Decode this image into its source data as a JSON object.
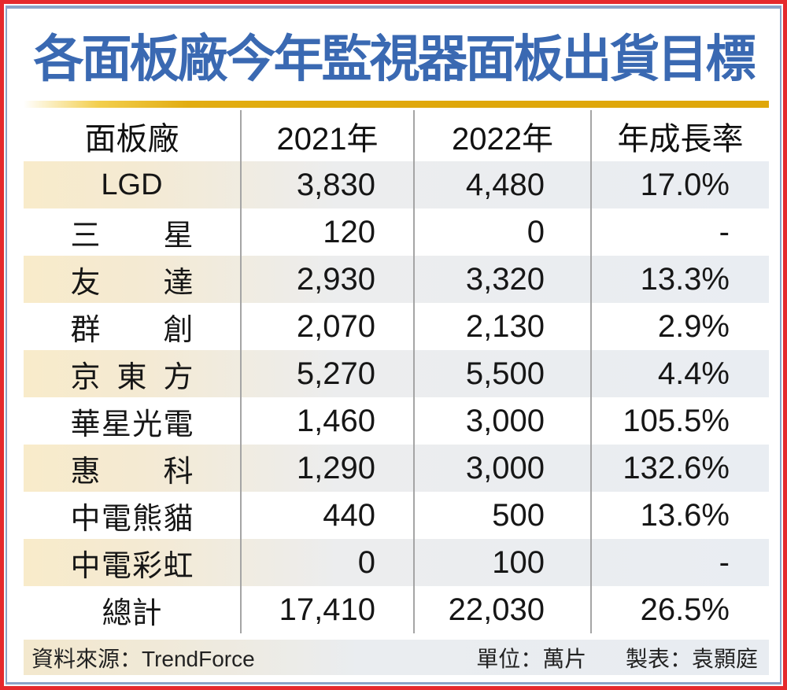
{
  "title": "各面板廠今年監視器面板出貨目標",
  "table": {
    "columns": [
      "面板廠",
      "2021年",
      "2022年",
      "年成長率"
    ],
    "rows": [
      {
        "name": "LGD",
        "y2021": "3,830",
        "y2022": "4,480",
        "growth": "17.0%"
      },
      {
        "name": "三星",
        "y2021": "120",
        "y2022": "0",
        "growth": "-"
      },
      {
        "name": "友達",
        "y2021": "2,930",
        "y2022": "3,320",
        "growth": "13.3%"
      },
      {
        "name": "群創",
        "y2021": "2,070",
        "y2022": "2,130",
        "growth": "2.9%"
      },
      {
        "name": "京東方",
        "y2021": "5,270",
        "y2022": "5,500",
        "growth": "4.4%"
      },
      {
        "name": "華星光電",
        "y2021": "1,460",
        "y2022": "3,000",
        "growth": "105.5%"
      },
      {
        "name": "惠科",
        "y2021": "1,290",
        "y2022": "3,000",
        "growth": "132.6%"
      },
      {
        "name": "中電熊貓",
        "y2021": "440",
        "y2022": "500",
        "growth": "13.6%"
      },
      {
        "name": "中電彩虹",
        "y2021": "0",
        "y2022": "100",
        "growth": "-"
      }
    ],
    "total_row": {
      "name": "總計",
      "y2021": "17,410",
      "y2022": "22,030",
      "growth": "26.5%"
    }
  },
  "footer": {
    "source": "資料來源：TrendForce",
    "unit": "單位：萬片",
    "credit": "製表：袁顥庭"
  },
  "colors": {
    "frame_red": "#e52a2d",
    "frame_blue": "#8aa4c8",
    "title_blue": "#3a69b2",
    "gold_bar": "#dfa70a",
    "stripe_beige": "#f8ebca",
    "stripe_bluegray": "#e9edf2",
    "separator_gray": "#a5a5a5"
  },
  "chart_data": {
    "type": "table",
    "title": "各面板廠今年監視器面板出貨目標",
    "unit": "萬片",
    "source": "TrendForce",
    "credit": "袁顥庭",
    "columns": [
      "面板廠",
      "2021年",
      "2022年",
      "年成長率"
    ],
    "rows": [
      [
        "LGD",
        3830,
        4480,
        "17.0%"
      ],
      [
        "三星",
        120,
        0,
        "-"
      ],
      [
        "友達",
        2930,
        3320,
        "13.3%"
      ],
      [
        "群創",
        2070,
        2130,
        "2.9%"
      ],
      [
        "京東方",
        5270,
        5500,
        "4.4%"
      ],
      [
        "華星光電",
        1460,
        3000,
        "105.5%"
      ],
      [
        "惠科",
        1290,
        3000,
        "132.6%"
      ],
      [
        "中電熊貓",
        440,
        500,
        "13.6%"
      ],
      [
        "中電彩虹",
        0,
        100,
        "-"
      ],
      [
        "總計",
        17410,
        22030,
        "26.5%"
      ]
    ]
  }
}
